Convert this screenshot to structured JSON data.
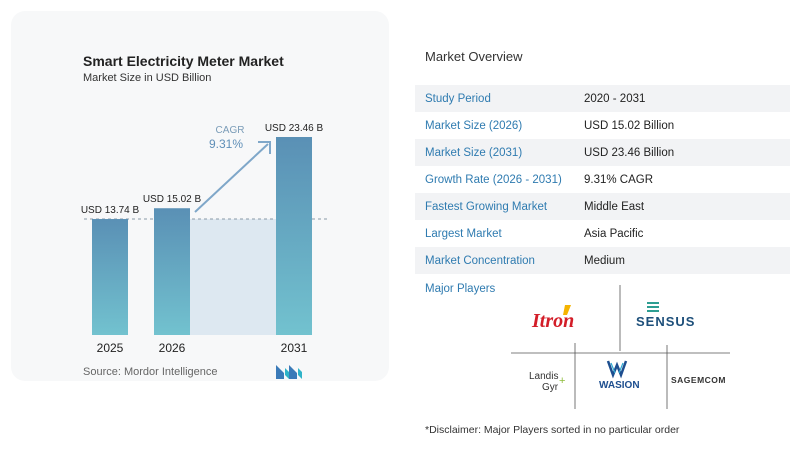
{
  "chart_data": {
    "type": "bar",
    "title": "Smart Electricity Meter Market",
    "subtitle": "Market Size in USD Billion",
    "categories": [
      "2025",
      "2026",
      "2031"
    ],
    "values": [
      13.74,
      15.02,
      23.46
    ],
    "data_labels": [
      "USD 13.74 B",
      "USD 15.02 B",
      "USD 23.46 B"
    ],
    "ylim": [
      0,
      23.46
    ],
    "cagr_label": "CAGR",
    "cagr_value": "9.31%",
    "colors": {
      "bar_top": "#5a90b5",
      "bar_bottom": "#72c2cf",
      "shade": "#dde8f1",
      "arrow": "#7fa7c9"
    }
  },
  "source": "Source: Mordor Intelligence",
  "overview": {
    "title": "Market Overview",
    "rows": [
      {
        "label": "Study Period",
        "value": "2020 - 2031"
      },
      {
        "label": "Market Size (2026)",
        "value": "USD 15.02 Billion"
      },
      {
        "label": "Market Size (2031)",
        "value": "USD 23.46 Billion"
      },
      {
        "label": "Growth Rate (2026 - 2031)",
        "value": "9.31% CAGR"
      },
      {
        "label": "Fastest Growing Market",
        "value": "Middle East"
      },
      {
        "label": "Largest Market",
        "value": "Asia Pacific"
      },
      {
        "label": "Market Concentration",
        "value": "Medium"
      }
    ]
  },
  "players": {
    "title": "Major Players",
    "logos": [
      "Itron",
      "SENSUS",
      "Landis",
      "Gyr",
      "WASION",
      "SAGEMCOM"
    ]
  },
  "disclaimer": "*Disclaimer: Major Players sorted in no particular order"
}
